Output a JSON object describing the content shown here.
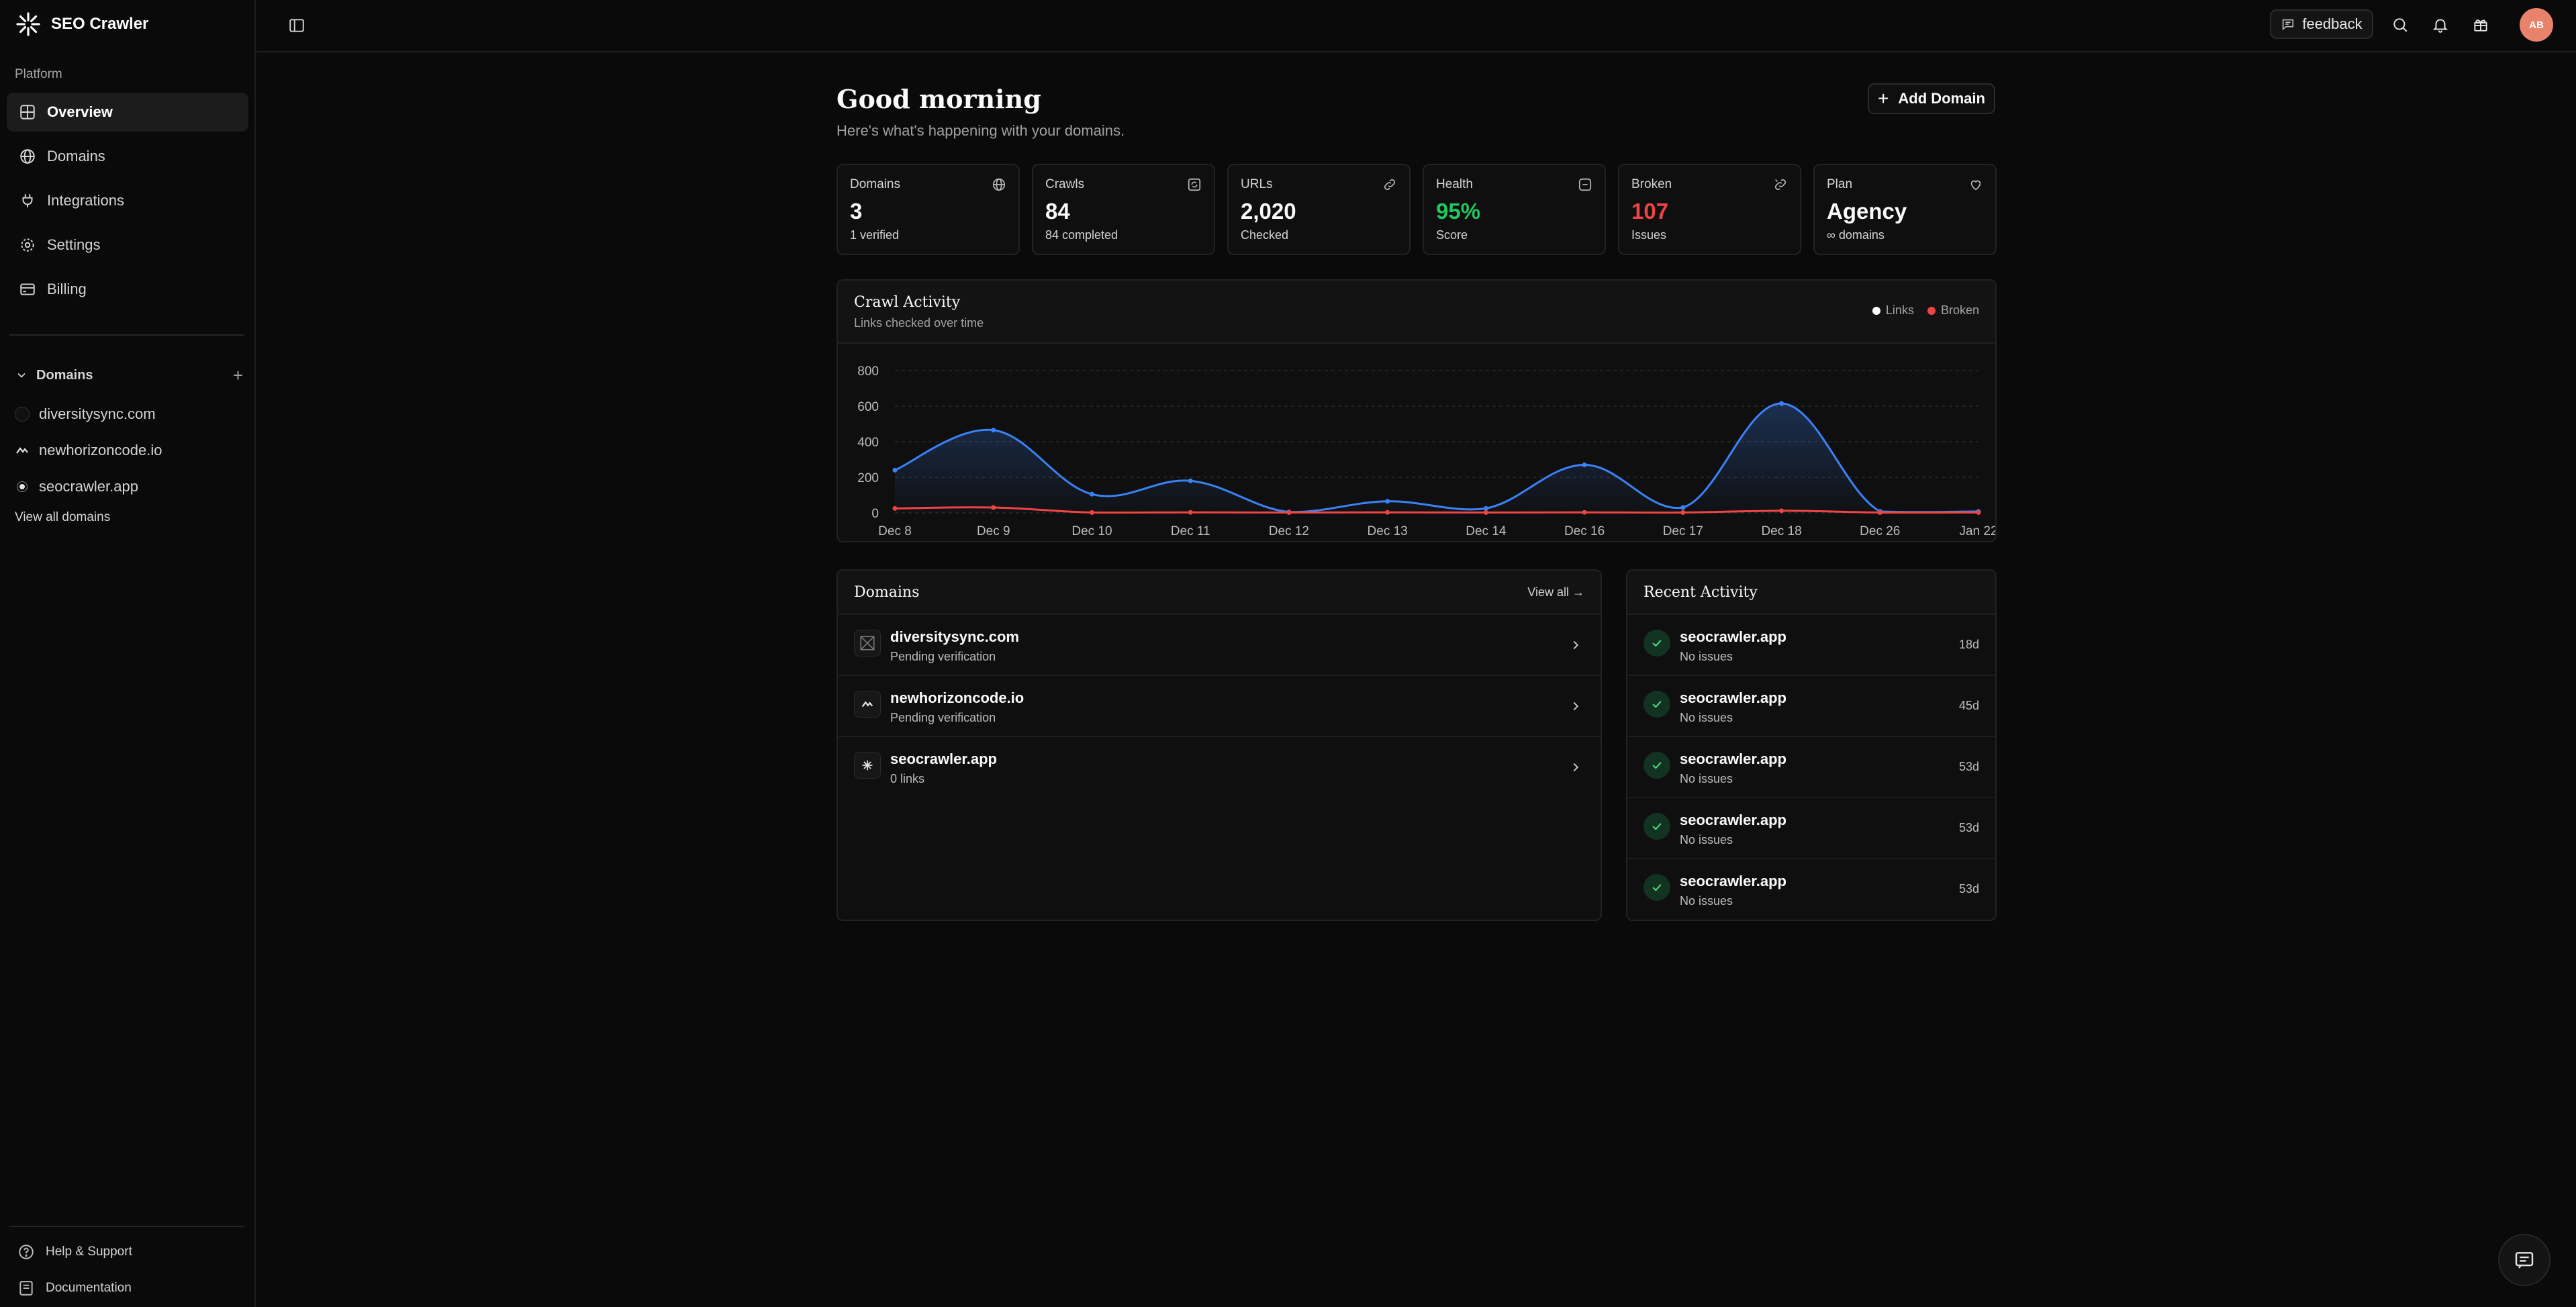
{
  "app": {
    "name": "SEO Crawler"
  },
  "sidebar": {
    "section_label": "Platform",
    "nav": [
      {
        "label": "Overview",
        "icon": "grid-icon",
        "active": true
      },
      {
        "label": "Domains",
        "icon": "globe-icon"
      },
      {
        "label": "Integrations",
        "icon": "plug-icon"
      },
      {
        "label": "Settings",
        "icon": "gear-icon"
      },
      {
        "label": "Billing",
        "icon": "credit-card-icon"
      }
    ],
    "domains_heading": "Domains",
    "domains": [
      {
        "name": "diversitysync.com"
      },
      {
        "name": "newhorizoncode.io"
      },
      {
        "name": "seocrawler.app"
      }
    ],
    "view_all": "View all domains",
    "bottom": [
      {
        "label": "Help & Support",
        "icon": "help-circle-icon"
      },
      {
        "label": "Documentation",
        "icon": "book-icon"
      }
    ]
  },
  "topbar": {
    "feedback_label": "feedback",
    "avatar_initials": "AB"
  },
  "main": {
    "greeting": "Good morning",
    "subtitle": "Here's what's happening with your domains.",
    "add_domain_label": "Add Domain"
  },
  "stats": [
    {
      "label": "Domains",
      "value": "3",
      "sub": "1 verified",
      "icon": "globe-icon"
    },
    {
      "label": "Crawls",
      "value": "84",
      "sub": "84 completed",
      "icon": "refresh-icon"
    },
    {
      "label": "URLs",
      "value": "2,020",
      "sub": "Checked",
      "icon": "link-icon"
    },
    {
      "label": "Health",
      "value": "95%",
      "sub": "Score",
      "icon": "minus-square-icon",
      "value_color": "#22c55e"
    },
    {
      "label": "Broken",
      "value": "107",
      "sub": "Issues",
      "icon": "unlink-icon",
      "value_color": "#ef4444"
    },
    {
      "label": "Plan",
      "value": "Agency",
      "sub": "∞ domains",
      "icon": "heart-icon"
    }
  ],
  "crawl_activity": {
    "title": "Crawl Activity",
    "subtitle": "Links checked over time",
    "legend": [
      {
        "label": "Links",
        "color": "#ffffff"
      },
      {
        "label": "Broken",
        "color": "#ef4444"
      }
    ]
  },
  "chart_data": {
    "type": "line",
    "categories": [
      "Dec 8",
      "Dec 9",
      "Dec 10",
      "Dec 11",
      "Dec 12",
      "Dec 13",
      "Dec 14",
      "Dec 16",
      "Dec 17",
      "Dec 18",
      "Dec 26",
      "Jan 22"
    ],
    "series": [
      {
        "name": "Links",
        "color": "#3b82f6",
        "values": [
          240,
          465,
          105,
          180,
          5,
          65,
          25,
          270,
          30,
          615,
          8,
          8
        ]
      },
      {
        "name": "Broken",
        "color": "#ef4444",
        "values": [
          25,
          30,
          2,
          3,
          2,
          3,
          2,
          3,
          2,
          12,
          2,
          2
        ]
      }
    ],
    "yticks": [
      0,
      200,
      400,
      600,
      800
    ],
    "ylim": [
      0,
      800
    ],
    "grid": true,
    "legend_position": "top-right"
  },
  "domains_card": {
    "title": "Domains",
    "view_all": "View all →",
    "items": [
      {
        "name": "diversitysync.com",
        "status": "Pending verification"
      },
      {
        "name": "newhorizoncode.io",
        "status": "Pending verification"
      },
      {
        "name": "seocrawler.app",
        "status": "0 links"
      }
    ]
  },
  "recent_activity": {
    "title": "Recent Activity",
    "items": [
      {
        "name": "seocrawler.app",
        "status": "No issues",
        "age": "18d"
      },
      {
        "name": "seocrawler.app",
        "status": "No issues",
        "age": "45d"
      },
      {
        "name": "seocrawler.app",
        "status": "No issues",
        "age": "53d"
      },
      {
        "name": "seocrawler.app",
        "status": "No issues",
        "age": "53d"
      },
      {
        "name": "seocrawler.app",
        "status": "No issues",
        "age": "53d"
      }
    ]
  }
}
